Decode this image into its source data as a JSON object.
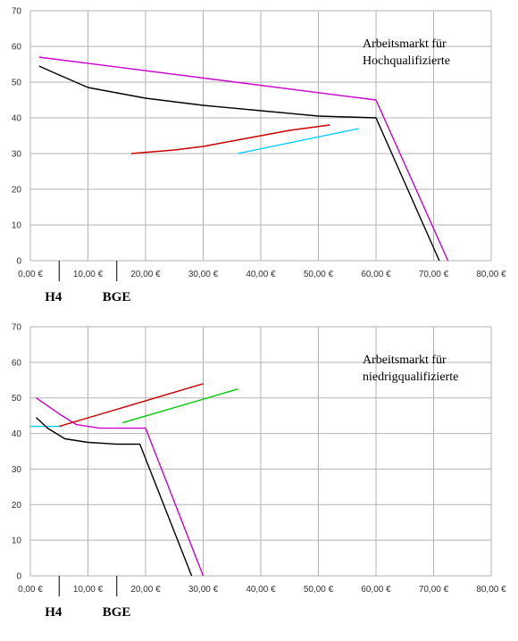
{
  "chart_data": [
    {
      "type": "line",
      "title": "",
      "xlabel": "",
      "ylabel": "",
      "xlim": [
        0,
        80
      ],
      "ylim": [
        0,
        70
      ],
      "x_ticks": [
        "0,00 €",
        "10,00 €",
        "20,00 €",
        "30,00 €",
        "40,00 €",
        "50,00 €",
        "60,00 €",
        "70,00 €",
        "80,00 €"
      ],
      "y_ticks": [
        "0",
        "10",
        "20",
        "30",
        "40",
        "50",
        "60",
        "70"
      ],
      "grid": true,
      "annotation": [
        "Arbeitsmarkt für",
        "Hochqualifizierte"
      ],
      "markers": [
        {
          "label": "H4",
          "x": 5
        },
        {
          "label": "BGE",
          "x": 15
        }
      ],
      "series": [
        {
          "color": "#cc00cc",
          "x": [
            1.5,
            60,
            72.5
          ],
          "y": [
            57,
            45,
            0
          ]
        },
        {
          "color": "#000000",
          "x": [
            1.5,
            5,
            10,
            15,
            20,
            30,
            40,
            50,
            60,
            71
          ],
          "y": [
            54.5,
            52,
            48.5,
            47,
            45.5,
            43.5,
            42,
            40.5,
            40,
            0
          ]
        },
        {
          "color": "#cc0000",
          "x": [
            17.5,
            25,
            30,
            35,
            40,
            45,
            52
          ],
          "y": [
            30,
            31,
            32,
            33.5,
            35,
            36.5,
            38
          ]
        },
        {
          "color": "#00ccff",
          "x": [
            36,
            57
          ],
          "y": [
            30,
            37
          ]
        }
      ]
    },
    {
      "type": "line",
      "title": "",
      "xlabel": "",
      "ylabel": "",
      "xlim": [
        0,
        80
      ],
      "ylim": [
        0,
        70
      ],
      "x_ticks": [
        "0,00 €",
        "10,00 €",
        "20,00 €",
        "30,00 €",
        "40,00 €",
        "50,00 €",
        "60,00 €",
        "70,00 €",
        "80,00 €"
      ],
      "y_ticks": [
        "0",
        "10",
        "20",
        "30",
        "40",
        "50",
        "60",
        "70"
      ],
      "grid": true,
      "annotation": [
        "Arbeitsmarkt für",
        "niedrigqualifizierte"
      ],
      "markers": [
        {
          "label": "H4",
          "x": 5
        },
        {
          "label": "BGE",
          "x": 15
        }
      ],
      "series": [
        {
          "color": "#00ccff",
          "x": [
            0,
            5.5
          ],
          "y": [
            42,
            42
          ]
        },
        {
          "color": "#cc00cc",
          "x": [
            1,
            5,
            8,
            12,
            20,
            30
          ],
          "y": [
            50,
            45.5,
            42.5,
            41.5,
            41.5,
            0
          ]
        },
        {
          "color": "#000000",
          "x": [
            1,
            3,
            6,
            10,
            15,
            19,
            28
          ],
          "y": [
            44.5,
            41.5,
            38.5,
            37.5,
            37,
            37,
            0
          ]
        },
        {
          "color": "#cc0000",
          "x": [
            5,
            30
          ],
          "y": [
            42,
            54
          ]
        },
        {
          "color": "#00cc00",
          "x": [
            16,
            36
          ],
          "y": [
            43,
            52.5
          ]
        }
      ]
    }
  ]
}
